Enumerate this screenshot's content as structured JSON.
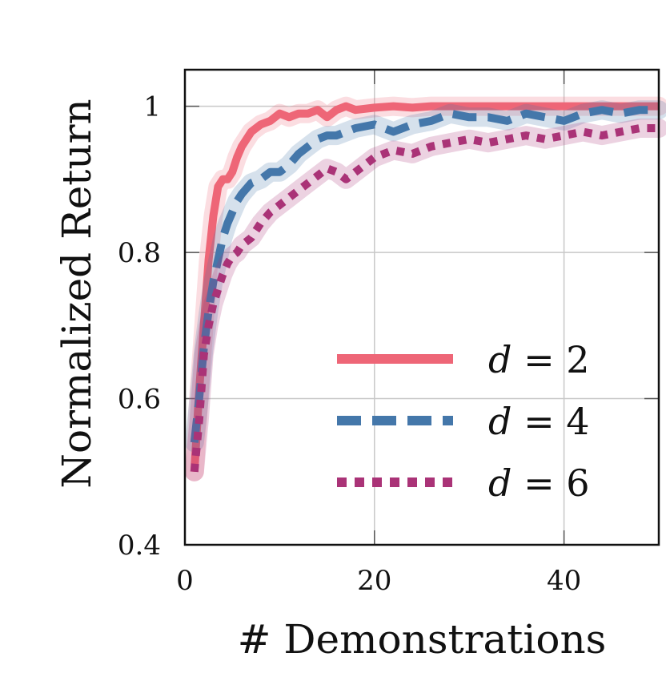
{
  "chart_data": {
    "type": "line",
    "title": "",
    "xlabel": "# Demonstrations",
    "ylabel": "Normalized Return",
    "xlim": [
      0,
      50
    ],
    "ylim": [
      0.4,
      1.05
    ],
    "xticks": [
      0,
      20,
      40
    ],
    "xtick_labels": [
      "0",
      "20",
      "40"
    ],
    "yticks": [
      0.4,
      0.6,
      0.8,
      1.0
    ],
    "ytick_labels": [
      "0.4",
      "0.6",
      "0.8",
      "1"
    ],
    "grid": true,
    "legend_position": "lower-right",
    "x": [
      1,
      1.5,
      2,
      2.5,
      3,
      3.5,
      4,
      4.5,
      5,
      5.5,
      6,
      7,
      8,
      9,
      10,
      11,
      12,
      13,
      14,
      15,
      16,
      17,
      18,
      20,
      22,
      24,
      26,
      28,
      30,
      32,
      34,
      36,
      38,
      40,
      42,
      44,
      46,
      48,
      50
    ],
    "series": [
      {
        "name": "d = 2",
        "legend_text": "2",
        "color": "#ee6677",
        "style": "solid",
        "values": [
          0.5,
          0.61,
          0.7,
          0.79,
          0.85,
          0.89,
          0.9,
          0.9,
          0.91,
          0.93,
          0.945,
          0.965,
          0.975,
          0.98,
          0.99,
          0.985,
          0.99,
          0.99,
          0.995,
          0.985,
          0.995,
          1.0,
          0.995,
          0.998,
          1.0,
          0.998,
          1.0,
          1.0,
          1.0,
          1.0,
          1.0,
          1.0,
          1.0,
          1.0,
          1.0,
          1.0,
          1.0,
          1.0,
          1.0
        ]
      },
      {
        "name": "d = 4",
        "legend_text": "4",
        "color": "#4477aa",
        "style": "dashed",
        "values": [
          0.54,
          0.6,
          0.67,
          0.72,
          0.76,
          0.79,
          0.82,
          0.84,
          0.855,
          0.87,
          0.88,
          0.895,
          0.9,
          0.91,
          0.91,
          0.92,
          0.935,
          0.945,
          0.955,
          0.96,
          0.96,
          0.965,
          0.97,
          0.975,
          0.965,
          0.975,
          0.98,
          0.99,
          0.985,
          0.985,
          0.98,
          0.99,
          0.985,
          0.98,
          0.99,
          0.995,
          0.99,
          0.995,
          0.995
        ]
      },
      {
        "name": "d = 6",
        "legend_text": "6",
        "color": "#aa3377",
        "style": "dotted",
        "values": [
          0.5,
          0.57,
          0.66,
          0.7,
          0.73,
          0.75,
          0.77,
          0.785,
          0.795,
          0.8,
          0.81,
          0.82,
          0.84,
          0.855,
          0.865,
          0.875,
          0.885,
          0.895,
          0.905,
          0.915,
          0.91,
          0.9,
          0.91,
          0.93,
          0.94,
          0.935,
          0.945,
          0.95,
          0.955,
          0.95,
          0.955,
          0.96,
          0.955,
          0.96,
          0.965,
          0.96,
          0.965,
          0.97,
          0.97
        ]
      }
    ]
  }
}
